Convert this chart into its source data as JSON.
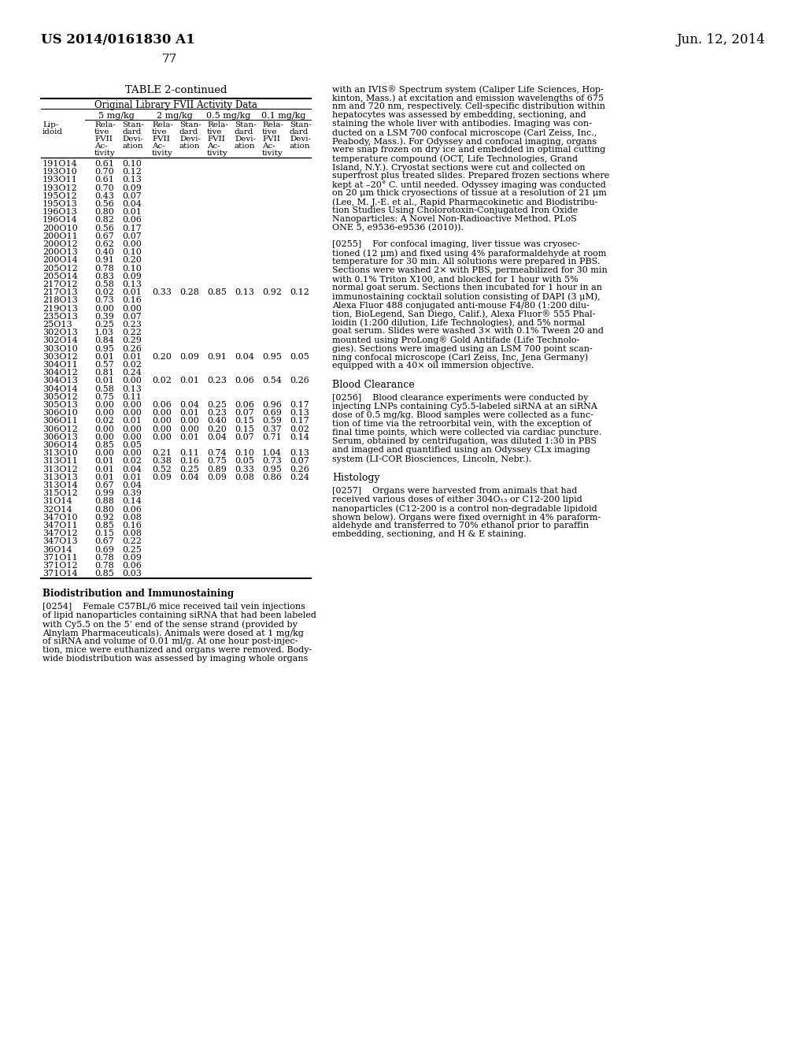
{
  "page_number": "77",
  "patent_left": "US 2014/0161830 A1",
  "patent_right": "Jun. 12, 2014",
  "table_title": "TABLE 2-continued",
  "table_subtitle": "Original Library FVII Activity Data",
  "table_data": [
    [
      "191O14",
      "0.61",
      "0.10",
      "",
      "",
      "",
      "",
      "",
      ""
    ],
    [
      "193O10",
      "0.70",
      "0.12",
      "",
      "",
      "",
      "",
      "",
      ""
    ],
    [
      "193O11",
      "0.61",
      "0.13",
      "",
      "",
      "",
      "",
      "",
      ""
    ],
    [
      "193O12",
      "0.70",
      "0.09",
      "",
      "",
      "",
      "",
      "",
      ""
    ],
    [
      "195O12",
      "0.43",
      "0.07",
      "",
      "",
      "",
      "",
      "",
      ""
    ],
    [
      "195O13",
      "0.56",
      "0.04",
      "",
      "",
      "",
      "",
      "",
      ""
    ],
    [
      "196O13",
      "0.80",
      "0.01",
      "",
      "",
      "",
      "",
      "",
      ""
    ],
    [
      "196O14",
      "0.82",
      "0.06",
      "",
      "",
      "",
      "",
      "",
      ""
    ],
    [
      "200O10",
      "0.56",
      "0.17",
      "",
      "",
      "",
      "",
      "",
      ""
    ],
    [
      "200O11",
      "0.67",
      "0.07",
      "",
      "",
      "",
      "",
      "",
      ""
    ],
    [
      "200O12",
      "0.62",
      "0.00",
      "",
      "",
      "",
      "",
      "",
      ""
    ],
    [
      "200O13",
      "0.40",
      "0.10",
      "",
      "",
      "",
      "",
      "",
      ""
    ],
    [
      "200O14",
      "0.91",
      "0.20",
      "",
      "",
      "",
      "",
      "",
      ""
    ],
    [
      "205O12",
      "0.78",
      "0.10",
      "",
      "",
      "",
      "",
      "",
      ""
    ],
    [
      "205O14",
      "0.83",
      "0.09",
      "",
      "",
      "",
      "",
      "",
      ""
    ],
    [
      "217O12",
      "0.58",
      "0.13",
      "",
      "",
      "",
      "",
      "",
      ""
    ],
    [
      "217O13",
      "0.02",
      "0.01",
      "0.33",
      "0.28",
      "0.85",
      "0.13",
      "0.92",
      "0.12"
    ],
    [
      "218O13",
      "0.73",
      "0.16",
      "",
      "",
      "",
      "",
      "",
      ""
    ],
    [
      "219O13",
      "0.00",
      "0.00",
      "",
      "",
      "",
      "",
      "",
      ""
    ],
    [
      "235O13",
      "0.39",
      "0.07",
      "",
      "",
      "",
      "",
      "",
      ""
    ],
    [
      "25O13",
      "0.25",
      "0.23",
      "",
      "",
      "",
      "",
      "",
      ""
    ],
    [
      "302O13",
      "1.03",
      "0.22",
      "",
      "",
      "",
      "",
      "",
      ""
    ],
    [
      "302O14",
      "0.84",
      "0.29",
      "",
      "",
      "",
      "",
      "",
      ""
    ],
    [
      "303O10",
      "0.95",
      "0.26",
      "",
      "",
      "",
      "",
      "",
      ""
    ],
    [
      "303O12",
      "0.01",
      "0.01",
      "0.20",
      "0.09",
      "0.91",
      "0.04",
      "0.95",
      "0.05"
    ],
    [
      "304O11",
      "0.57",
      "0.02",
      "",
      "",
      "",
      "",
      "",
      ""
    ],
    [
      "304O12",
      "0.81",
      "0.24",
      "",
      "",
      "",
      "",
      "",
      ""
    ],
    [
      "304O13",
      "0.01",
      "0.00",
      "0.02",
      "0.01",
      "0.23",
      "0.06",
      "0.54",
      "0.26"
    ],
    [
      "304O14",
      "0.58",
      "0.13",
      "",
      "",
      "",
      "",
      "",
      ""
    ],
    [
      "305O12",
      "0.75",
      "0.11",
      "",
      "",
      "",
      "",
      "",
      ""
    ],
    [
      "305O13",
      "0.00",
      "0.00",
      "0.06",
      "0.04",
      "0.25",
      "0.06",
      "0.96",
      "0.17"
    ],
    [
      "306O10",
      "0.00",
      "0.00",
      "0.00",
      "0.01",
      "0.23",
      "0.07",
      "0.69",
      "0.13"
    ],
    [
      "306O11",
      "0.02",
      "0.01",
      "0.00",
      "0.00",
      "0.40",
      "0.15",
      "0.59",
      "0.17"
    ],
    [
      "306O12",
      "0.00",
      "0.00",
      "0.00",
      "0.00",
      "0.20",
      "0.15",
      "0.37",
      "0.02"
    ],
    [
      "306O13",
      "0.00",
      "0.00",
      "0.00",
      "0.01",
      "0.04",
      "0.07",
      "0.71",
      "0.14"
    ],
    [
      "306O14",
      "0.85",
      "0.05",
      "",
      "",
      "",
      "",
      "",
      ""
    ],
    [
      "313O10",
      "0.00",
      "0.00",
      "0.21",
      "0.11",
      "0.74",
      "0.10",
      "1.04",
      "0.13"
    ],
    [
      "313O11",
      "0.01",
      "0.02",
      "0.38",
      "0.16",
      "0.75",
      "0.05",
      "0.73",
      "0.07"
    ],
    [
      "313O12",
      "0.01",
      "0.04",
      "0.52",
      "0.25",
      "0.89",
      "0.33",
      "0.95",
      "0.26"
    ],
    [
      "313O13",
      "0.01",
      "0.01",
      "0.09",
      "0.04",
      "0.09",
      "0.08",
      "0.86",
      "0.24"
    ],
    [
      "313O14",
      "0.67",
      "0.04",
      "",
      "",
      "",
      "",
      "",
      ""
    ],
    [
      "315O12",
      "0.99",
      "0.39",
      "",
      "",
      "",
      "",
      "",
      ""
    ],
    [
      "31O14",
      "0.88",
      "0.14",
      "",
      "",
      "",
      "",
      "",
      ""
    ],
    [
      "32O14",
      "0.80",
      "0.06",
      "",
      "",
      "",
      "",
      "",
      ""
    ],
    [
      "347O10",
      "0.92",
      "0.08",
      "",
      "",
      "",
      "",
      "",
      ""
    ],
    [
      "347O11",
      "0.85",
      "0.16",
      "",
      "",
      "",
      "",
      "",
      ""
    ],
    [
      "347O12",
      "0.15",
      "0.08",
      "",
      "",
      "",
      "",
      "",
      ""
    ],
    [
      "347O13",
      "0.67",
      "0.22",
      "",
      "",
      "",
      "",
      "",
      ""
    ],
    [
      "36O14",
      "0.69",
      "0.25",
      "",
      "",
      "",
      "",
      "",
      ""
    ],
    [
      "371O11",
      "0.78",
      "0.09",
      "",
      "",
      "",
      "",
      "",
      ""
    ],
    [
      "371O12",
      "0.78",
      "0.06",
      "",
      "",
      "",
      "",
      "",
      ""
    ],
    [
      "371O14",
      "0.85",
      "0.03",
      "",
      "",
      "",
      "",
      "",
      ""
    ]
  ],
  "cont_lines": [
    "with an IVIS® Spectrum system (Caliper Life Sciences, Hop-",
    "kinton, Mass.) at excitation and emission wavelengths of 675",
    "nm and 720 nm, respectively. Cell-specific distribution within",
    "hepatocytes was assessed by embedding, sectioning, and",
    "staining the whole liver with antibodies. Imaging was con-",
    "ducted on a LSM 700 confocal microscope (Carl Zeiss, Inc.,",
    "Peabody, Mass.). For Odyssey and confocal imaging, organs",
    "were snap frozen on dry ice and embedded in optimal cutting",
    "temperature compound (OCT, Life Technologies, Grand",
    "Island, N.Y.). Cryostat sections were cut and collected on",
    "superfrost plus treated slides. Prepared frozen sections where",
    "kept at –20° C. until needed. Odyssey imaging was conducted",
    "on 20 μm thick cryosections of tissue at a resolution of 21 μm",
    "(Lee, M. J.-E. et al., Rapid Pharmacokinetic and Biodistribu-",
    "tion Studies Using Cholorotoxin-Conjugated Iron Oxide",
    "Nanoparticles: A Novel Non-Radioactive Method. PLoS",
    "ONE 5, e9536-e9536 (2010))."
  ],
  "p0255_lines": [
    "[0255]    For confocal imaging, liver tissue was cryosec-",
    "tioned (12 μm) and fixed using 4% paraformaldehyde at room",
    "temperature for 30 min. All solutions were prepared in PBS.",
    "Sections were washed 2× with PBS, permeabilized for 30 min",
    "with 0.1% Triton X100, and blocked for 1 hour with 5%",
    "normal goat serum. Sections then incubated for 1 hour in an",
    "immunostaining cocktail solution consisting of DAPI (3 μM),",
    "Alexa Fluor 488 conjugated anti-mouse F4/80 (1:200 dilu-",
    "tion, BioLegend, San Diego, Calif.), Alexa Fluor® 555 Phal-",
    "loidin (1:200 dilution, Life Technologies), and 5% normal",
    "goat serum. Slides were washed 3× with 0.1% Tween 20 and",
    "mounted using ProLong® Gold Antifade (Life Technolo-",
    "gies). Sections were imaged using an LSM 700 point scan-",
    "ning confocal microscope (Carl Zeiss, Inc, Jena Germany)",
    "equipped with a 40× oil immersion objective."
  ],
  "blood_clearance_header": "Blood Clearance",
  "p0256_lines": [
    "[0256]    Blood clearance experiments were conducted by",
    "injecting LNPs containing Cy5.5-labeled siRNA at an siRNA",
    "dose of 0.5 mg/kg. Blood samples were collected as a func-",
    "tion of time via the retroorbital vein, with the exception of",
    "final time points, which were collected via cardiac puncture.",
    "Serum, obtained by centrifugation, was diluted 1:30 in PBS",
    "and imaged and quantified using an Odyssey CLx imaging",
    "system (LI-COR Biosciences, Lincoln, Nebr.)."
  ],
  "histology_header": "Histology",
  "p0257_lines": [
    "[0257]    Organs were harvested from animals that had",
    "received various doses of either 304O₁₃ or C12-200 lipid",
    "nanoparticles (C12-200 is a control non-degradable lipidoid",
    "shown below). Organs were fixed overnight in 4% paraform-",
    "aldehyde and transferred to 70% ethanol prior to paraffin",
    "embedding, sectioning, and H & E staining."
  ],
  "bio_section_header": "Biodistribution and Immunostaining",
  "p0254_lines": [
    "[0254]    Female C57BL/6 mice received tail vein injections",
    "of lipid nanoparticles containing siRNA that had been labeled",
    "with Cy5.5 on the 5’ end of the sense strand (provided by",
    "Alnylam Pharmaceuticals). Animals were dosed at 1 mg/kg",
    "of siRNA and volume of 0.01 ml/g. At one hour post-injec-",
    "tion, mice were euthanized and organs were removed. Body-",
    "wide biodistribution was assessed by imaging whole organs"
  ]
}
